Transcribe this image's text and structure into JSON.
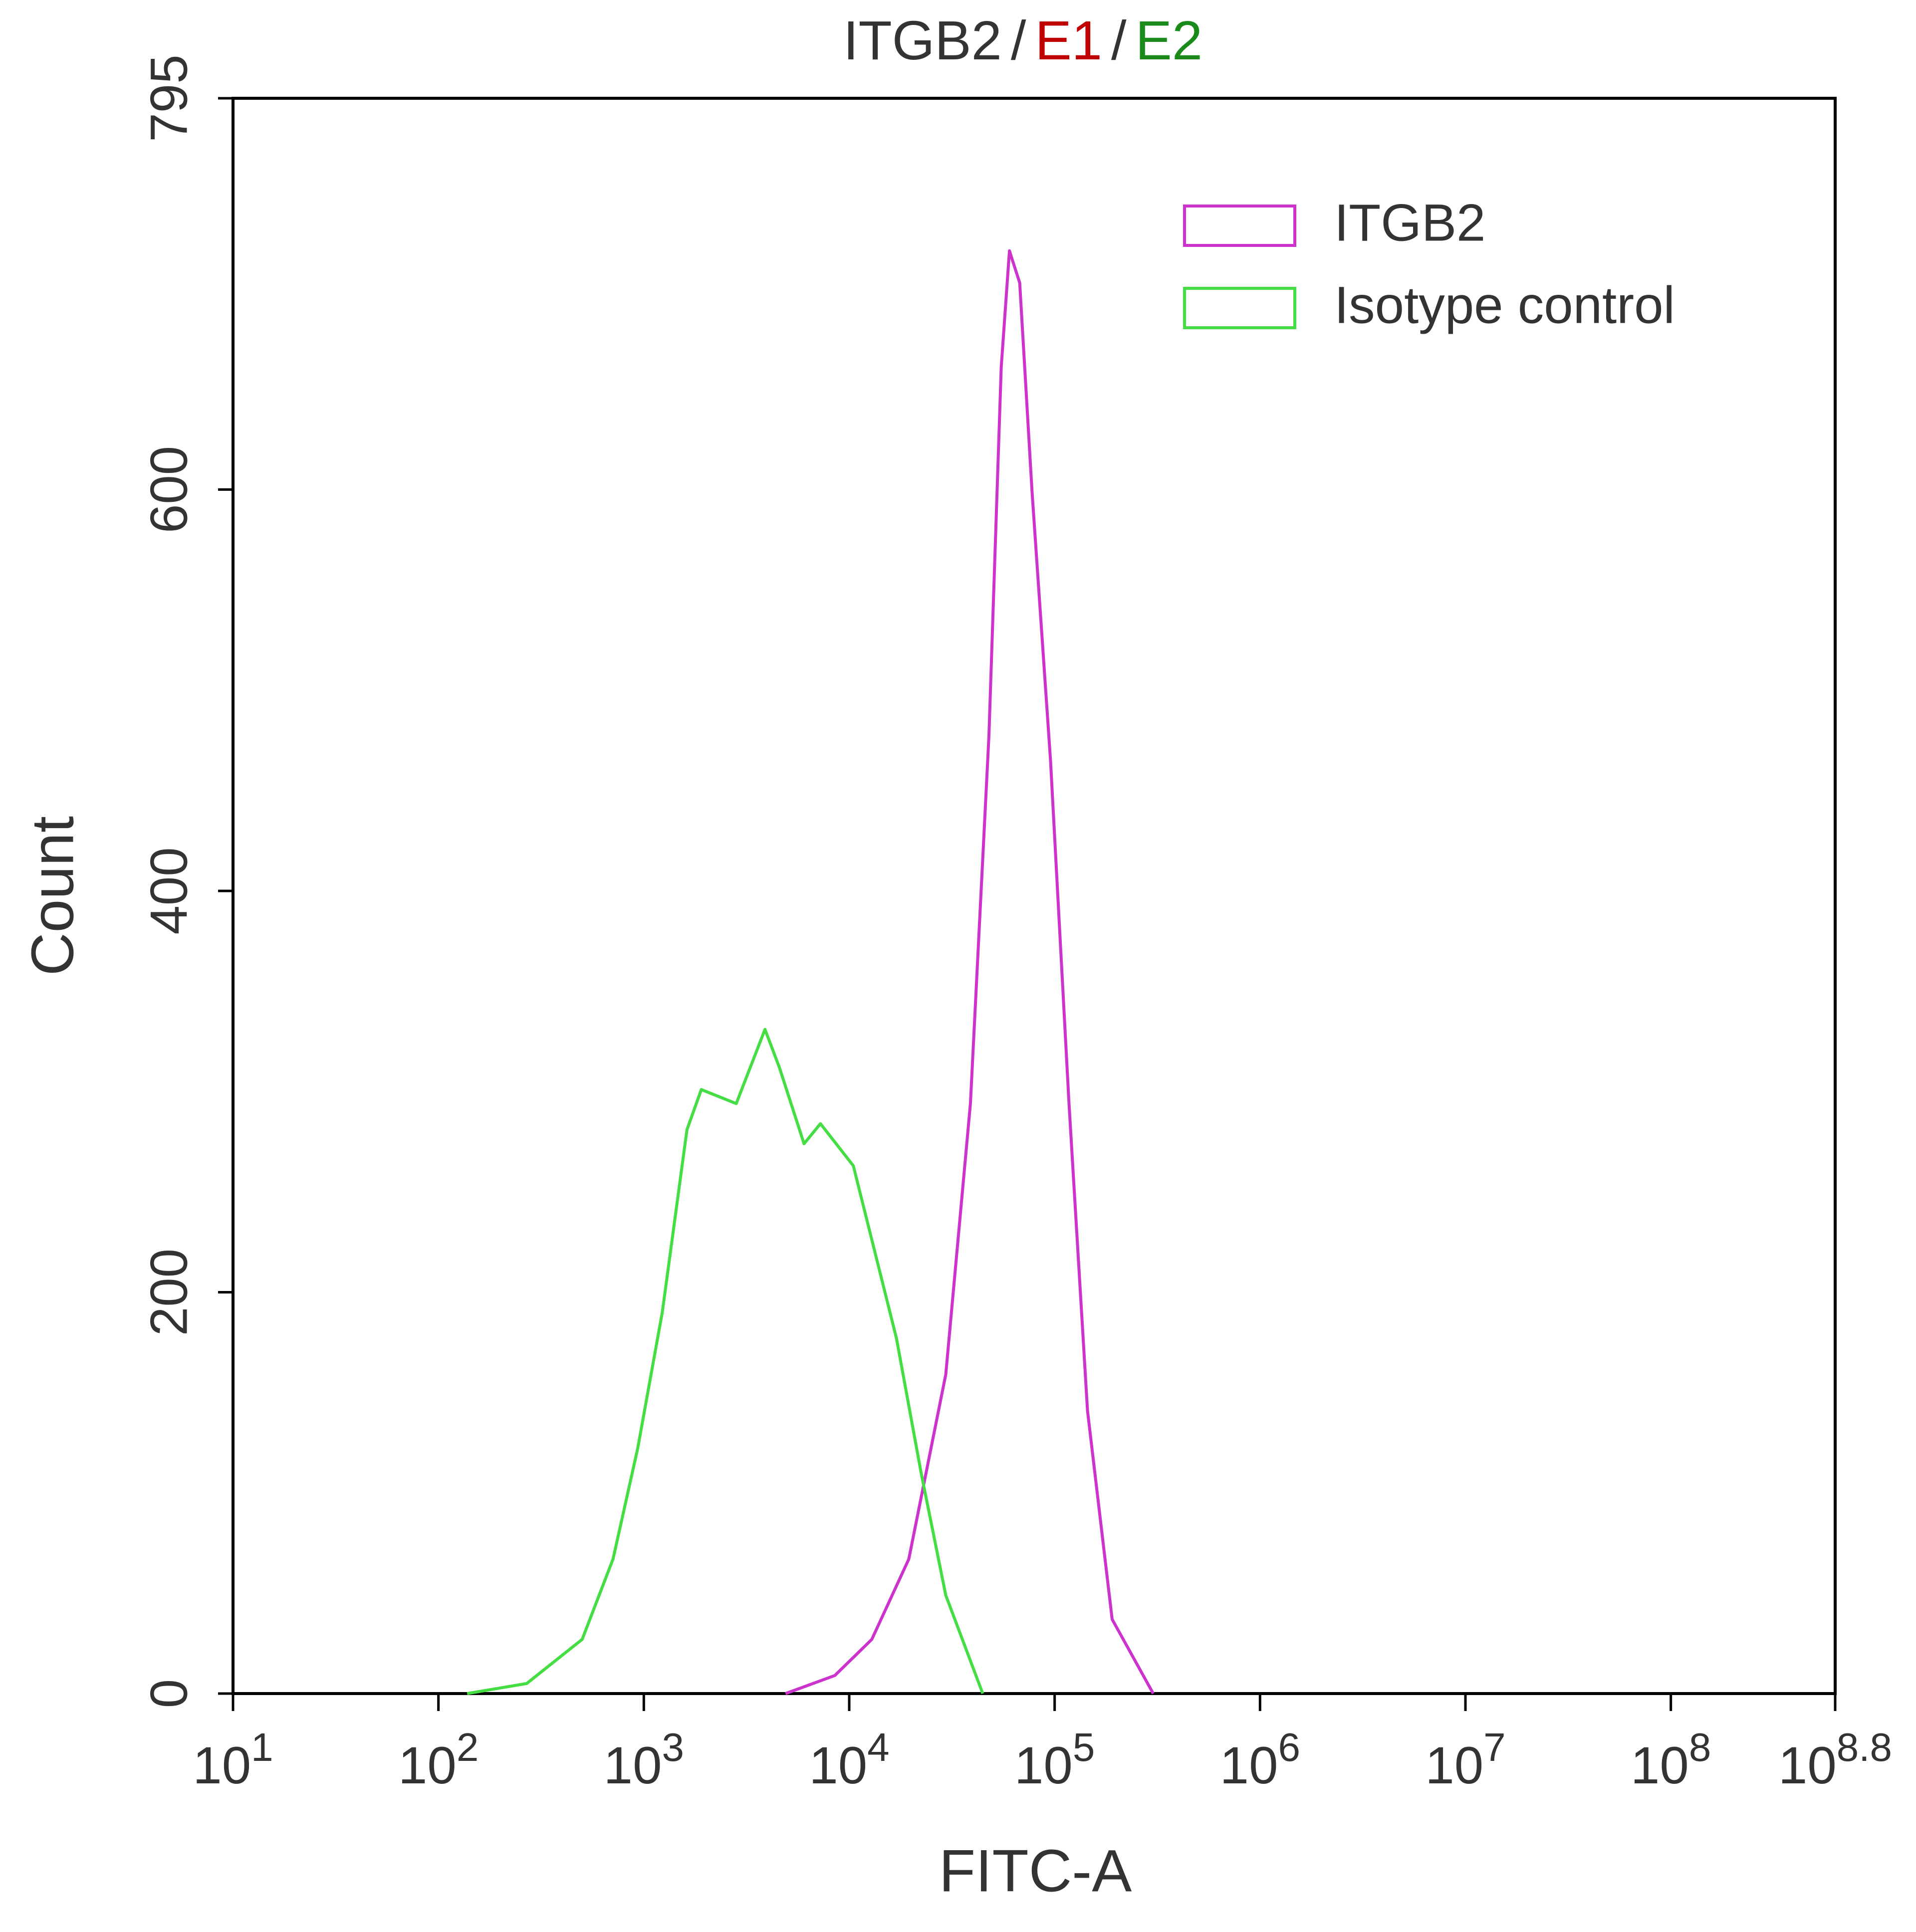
{
  "chart_data": {
    "type": "line",
    "title": [
      {
        "text": "ITGB2",
        "color": "#333333"
      },
      {
        "text": "/",
        "color": "#333333"
      },
      {
        "text": "E1",
        "color": "#c00000"
      },
      {
        "text": "/",
        "color": "#333333"
      },
      {
        "text": "E2",
        "color": "#1a8a1a"
      }
    ],
    "x_label": "FITC-A",
    "y_label": "Count",
    "xscale": "log",
    "xlim": [
      10,
      630957344.48
    ],
    "ylim": [
      0,
      795
    ],
    "xticks": [
      {
        "value": 10,
        "label": "10^1"
      },
      {
        "value": 100,
        "label": "10^2"
      },
      {
        "value": 1000,
        "label": "10^3"
      },
      {
        "value": 10000,
        "label": "10^4"
      },
      {
        "value": 100000,
        "label": "10^5"
      },
      {
        "value": 1000000,
        "label": "10^6"
      },
      {
        "value": 10000000,
        "label": "10^7"
      },
      {
        "value": 100000000,
        "label": "10^8"
      },
      {
        "value": 630957344.48,
        "label": "10^8.8"
      }
    ],
    "yticks": [
      0,
      200,
      400,
      600,
      795
    ],
    "grid": false,
    "legend": "upper right",
    "series": [
      {
        "name": "ITGB2",
        "color": "#cc33cc",
        "x": [
          4898,
          8511,
          12882,
          19498,
          29512,
          38905,
          47863,
          54954,
          60256,
          67608,
          77625,
          95499,
          117490,
          144544,
          190546,
          301995
        ],
        "values": [
          0,
          9,
          27,
          67,
          159,
          294,
          477,
          661,
          719,
          703,
          599,
          465,
          294,
          141,
          37,
          0
        ]
      },
      {
        "name": "Isotype control",
        "color": "#44dd44",
        "x": [
          138,
          269,
          501,
          708,
          933,
          1230,
          1622,
          1905,
          2818,
          3890,
          4571,
          6026,
          7244,
          10471,
          16982,
          22387,
          29512,
          44668
        ],
        "values": [
          0,
          5,
          27,
          67,
          122,
          190,
          281,
          301,
          294,
          331,
          312,
          274,
          284,
          263,
          177,
          110,
          49,
          0
        ]
      }
    ]
  }
}
